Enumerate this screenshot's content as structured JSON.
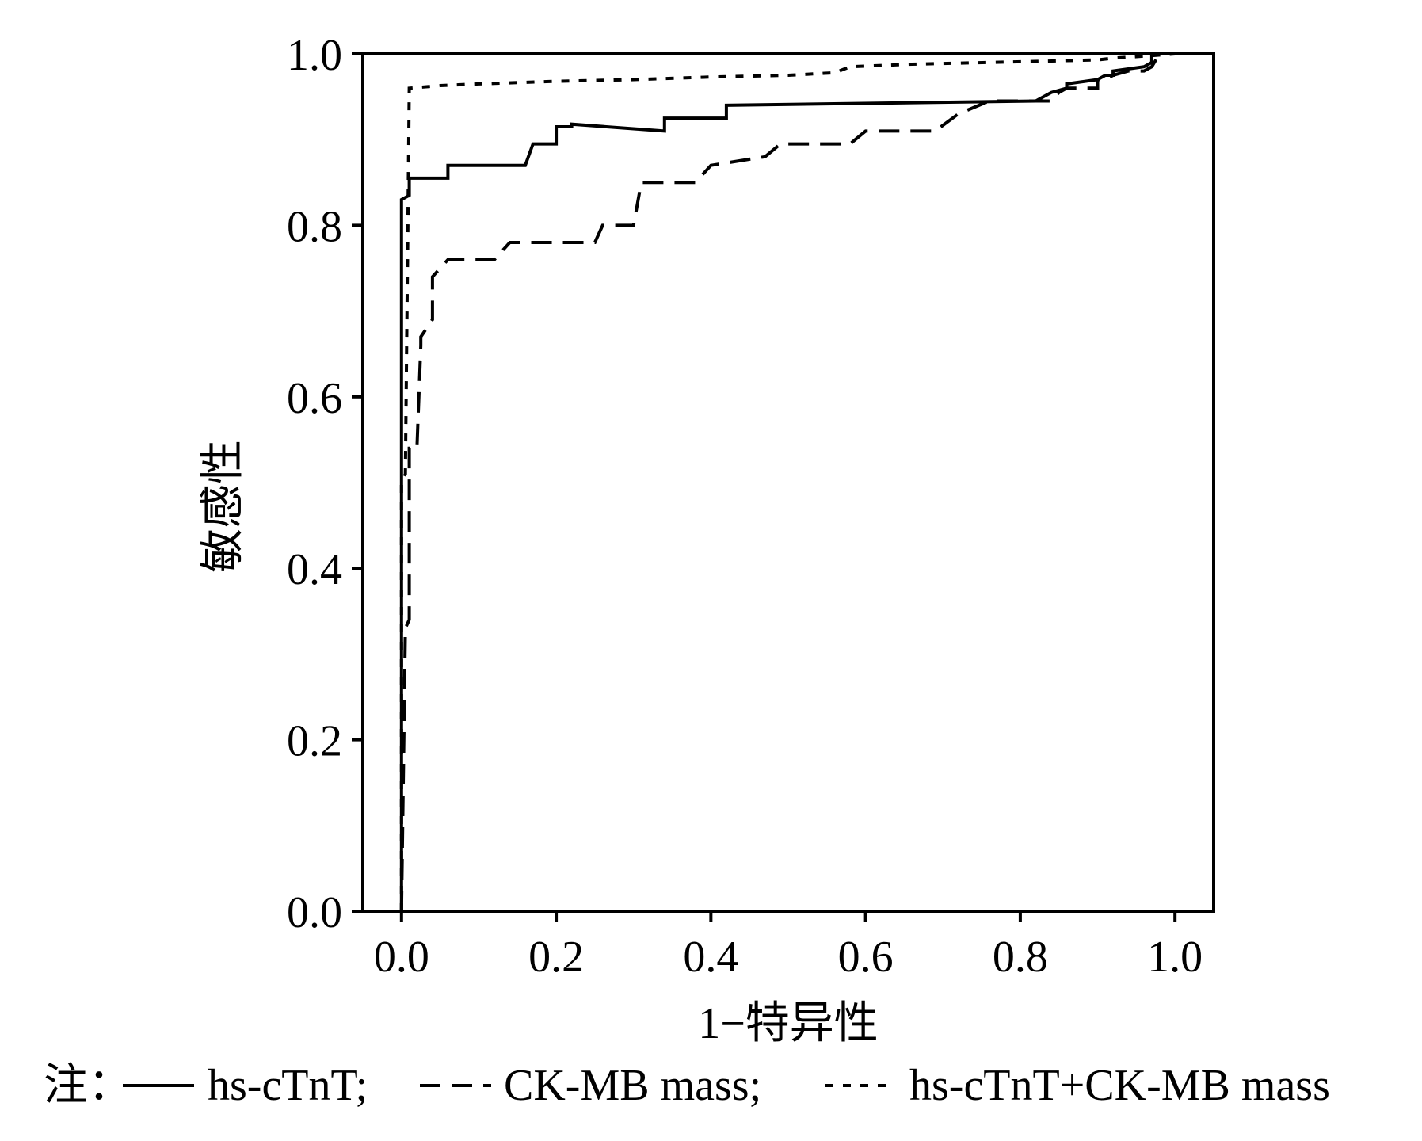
{
  "chart_data": {
    "type": "line",
    "xlabel": "1−特异性",
    "ylabel": "敏感性",
    "xlim": [
      -0.05,
      1.05
    ],
    "ylim": [
      0.0,
      1.0
    ],
    "x_ticks": [
      "0.0",
      "0.2",
      "0.4",
      "0.6",
      "0.8",
      "1.0"
    ],
    "y_ticks": [
      "0.0",
      "0.2",
      "0.4",
      "0.6",
      "0.8",
      "1.0"
    ],
    "grid": false,
    "legend": {
      "position": "bottom",
      "prefix": "注：",
      "entries": [
        {
          "label": "hs-cTnT;",
          "style": "solid"
        },
        {
          "label": "CK-MB mass;",
          "style": "dashed"
        },
        {
          "label": "hs-cTnT+CK-MB mass",
          "style": "dotted"
        }
      ]
    },
    "series": [
      {
        "name": "hs-cTnT",
        "style": "solid",
        "x": [
          0.0,
          0.0,
          0.01,
          0.01,
          0.06,
          0.06,
          0.16,
          0.17,
          0.2,
          0.2,
          0.22,
          0.22,
          0.34,
          0.34,
          0.42,
          0.42,
          0.82,
          0.82,
          0.84,
          0.86,
          0.86,
          0.9,
          0.91,
          0.92,
          0.92,
          0.96,
          0.97,
          0.97,
          1.0
        ],
        "y": [
          0.0,
          0.83,
          0.835,
          0.855,
          0.855,
          0.87,
          0.87,
          0.895,
          0.895,
          0.915,
          0.915,
          0.918,
          0.91,
          0.925,
          0.925,
          0.94,
          0.945,
          0.945,
          0.955,
          0.96,
          0.965,
          0.97,
          0.975,
          0.975,
          0.98,
          0.985,
          0.99,
          1.0,
          1.0
        ]
      },
      {
        "name": "CK-MB mass",
        "style": "dashed",
        "x": [
          0.0,
          0.005,
          0.01,
          0.01,
          0.02,
          0.025,
          0.025,
          0.04,
          0.04,
          0.05,
          0.06,
          0.12,
          0.14,
          0.25,
          0.26,
          0.3,
          0.31,
          0.38,
          0.4,
          0.47,
          0.49,
          0.58,
          0.6,
          0.69,
          0.72,
          0.76,
          0.8,
          0.84,
          0.85,
          0.86,
          0.86,
          0.9,
          0.9,
          0.91,
          0.92,
          0.94,
          0.96,
          0.97,
          0.98,
          1.0
        ],
        "y": [
          0.0,
          0.33,
          0.34,
          0.54,
          0.54,
          0.66,
          0.67,
          0.69,
          0.74,
          0.75,
          0.76,
          0.76,
          0.78,
          0.78,
          0.8,
          0.8,
          0.85,
          0.85,
          0.87,
          0.88,
          0.895,
          0.895,
          0.91,
          0.91,
          0.93,
          0.945,
          0.945,
          0.945,
          0.955,
          0.96,
          0.96,
          0.96,
          0.97,
          0.97,
          0.975,
          0.98,
          0.98,
          0.985,
          1.0,
          1.0
        ]
      },
      {
        "name": "hs-cTnT+CK-MB mass",
        "style": "dotted",
        "x": [
          0.0,
          0.0,
          0.005,
          0.01,
          0.01,
          0.05,
          0.1,
          0.2,
          0.3,
          0.4,
          0.5,
          0.56,
          0.58,
          0.66,
          0.76,
          0.9,
          0.92,
          0.97,
          1.0
        ],
        "y": [
          0.0,
          0.5,
          0.51,
          0.96,
          0.96,
          0.963,
          0.965,
          0.968,
          0.97,
          0.973,
          0.975,
          0.978,
          0.985,
          0.988,
          0.99,
          0.993,
          0.995,
          0.998,
          1.0
        ]
      }
    ]
  }
}
